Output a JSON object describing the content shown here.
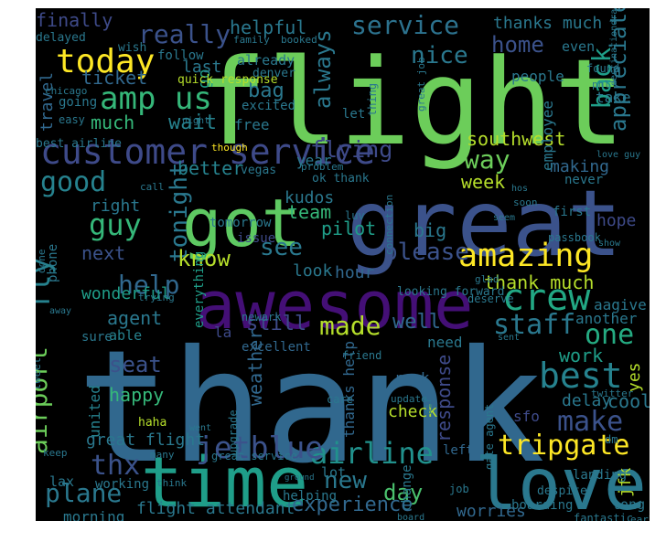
{
  "words": [
    {
      "t": "thank",
      "c": "#31688e"
    },
    {
      "t": "flight",
      "c": "#6ccd5a"
    },
    {
      "t": "great",
      "c": "#3b528b"
    },
    {
      "t": "awesome",
      "c": "#440f76"
    },
    {
      "t": "love",
      "c": "#2a788e"
    },
    {
      "t": "time",
      "c": "#1f9e89"
    },
    {
      "t": "got",
      "c": "#5ec962"
    },
    {
      "t": "customer service",
      "c": "#3e4a89"
    },
    {
      "t": "today",
      "c": "#fde725"
    },
    {
      "t": "amp us",
      "c": "#35b779"
    },
    {
      "t": "amazing",
      "c": "#fde725"
    },
    {
      "t": "best",
      "c": "#26828e"
    },
    {
      "t": "crew",
      "c": "#22a884"
    },
    {
      "t": "airline",
      "c": "#21918c"
    },
    {
      "t": "jetblue",
      "c": "#3b528b"
    },
    {
      "t": "tripgate",
      "c": "#fde725"
    },
    {
      "t": "service",
      "c": "#2c728e"
    },
    {
      "t": "really",
      "c": "#3b528b"
    },
    {
      "t": "good",
      "c": "#26828e"
    },
    {
      "t": "guy",
      "c": "#35b779"
    },
    {
      "t": "help",
      "c": "#31688e"
    },
    {
      "t": "flying",
      "c": "#3e4a89"
    },
    {
      "t": "back",
      "c": "#1f9e89"
    },
    {
      "t": "appreciate",
      "c": "#2a788e"
    },
    {
      "t": "way",
      "c": "#6ccd5a"
    },
    {
      "t": "please",
      "c": "#3b528b"
    },
    {
      "t": "made",
      "c": "#b5de2b"
    },
    {
      "t": "make",
      "c": "#3b528b"
    },
    {
      "t": "staff",
      "c": "#2a788e"
    },
    {
      "t": "one",
      "c": "#25ab82"
    },
    {
      "t": "thx",
      "c": "#3b528b"
    },
    {
      "t": "plane",
      "c": "#2a788e"
    },
    {
      "t": "new",
      "c": "#2a788e"
    },
    {
      "t": "day",
      "c": "#4ac16d"
    },
    {
      "t": "home",
      "c": "#3b528b"
    },
    {
      "t": "nice",
      "c": "#2a788e"
    },
    {
      "t": "fly",
      "c": "#26828e"
    },
    {
      "t": "airport",
      "c": "#6ccd5a"
    },
    {
      "t": "tonight",
      "c": "#2a788e"
    },
    {
      "t": "know",
      "c": "#b5de2b"
    },
    {
      "t": "see",
      "c": "#2a788e"
    },
    {
      "t": "experience",
      "c": "#31688e"
    },
    {
      "t": "always",
      "c": "#2a788e"
    },
    {
      "t": "finally",
      "c": "#3e4a89"
    },
    {
      "t": "helpful",
      "c": "#2a788e"
    },
    {
      "t": "thanks much",
      "c": "#2a788e"
    },
    {
      "t": "bag",
      "c": "#2a788e"
    },
    {
      "t": "ticket",
      "c": "#31688e"
    },
    {
      "t": "wait",
      "c": "#26828e"
    },
    {
      "t": "better",
      "c": "#26828e"
    },
    {
      "t": "southwest",
      "c": "#b5de2b"
    },
    {
      "t": "week",
      "c": "#b5de2b"
    },
    {
      "t": "making",
      "c": "#31688e"
    },
    {
      "t": "thank much",
      "c": "#b5de2b"
    },
    {
      "t": "still",
      "c": "#3e4a89"
    },
    {
      "t": "well",
      "c": "#31688e"
    },
    {
      "t": "agent",
      "c": "#2a788e"
    },
    {
      "t": "seat",
      "c": "#3b528b"
    },
    {
      "t": "happy",
      "c": "#35b779"
    },
    {
      "t": "work",
      "c": "#1f9e89"
    },
    {
      "t": "cool",
      "c": "#2a788e"
    },
    {
      "t": "delay",
      "c": "#2a788e"
    },
    {
      "t": "response",
      "c": "#3e4a89"
    },
    {
      "t": "great flight",
      "c": "#2a788e"
    },
    {
      "t": "flight attendant",
      "c": "#2a788e"
    },
    {
      "t": "morning",
      "c": "#2a788e"
    },
    {
      "t": "worries",
      "c": "#31688e"
    },
    {
      "t": "next",
      "c": "#3b528b"
    },
    {
      "t": "right",
      "c": "#2a788e"
    },
    {
      "t": "wonderful",
      "c": "#1f9e89"
    },
    {
      "t": "team",
      "c": "#35b779"
    },
    {
      "t": "kudos",
      "c": "#2a788e"
    },
    {
      "t": "pilot",
      "c": "#1f9e89"
    },
    {
      "t": "year",
      "c": "#2a788e"
    },
    {
      "t": "hope",
      "c": "#3e4a89"
    },
    {
      "t": "look",
      "c": "#2a788e"
    },
    {
      "t": "hour",
      "c": "#31688e"
    },
    {
      "t": "big",
      "c": "#2a788e"
    },
    {
      "t": "go",
      "c": "#1f9e89"
    },
    {
      "t": "travel",
      "c": "#31688e"
    },
    {
      "t": "much",
      "c": "#35b779"
    },
    {
      "t": "last",
      "c": "#2a788e"
    },
    {
      "t": "free",
      "c": "#2a788e"
    },
    {
      "t": "phone",
      "c": "#2a788e"
    },
    {
      "t": "everything",
      "c": "#1f9e89"
    },
    {
      "t": "weather",
      "c": "#31688e"
    },
    {
      "t": "united",
      "c": "#26828e"
    },
    {
      "t": "thanks help",
      "c": "#31688e"
    },
    {
      "t": "rock",
      "c": "#31688e"
    },
    {
      "t": "check",
      "c": "#b5de2b"
    },
    {
      "t": "sfo",
      "c": "#3e4a89"
    },
    {
      "t": "jfk",
      "c": "#b5de2b"
    },
    {
      "t": "yes",
      "c": "#b5de2b"
    },
    {
      "t": "need",
      "c": "#2a788e"
    },
    {
      "t": "another",
      "c": "#2a788e"
    },
    {
      "t": "aagive",
      "c": "#2a788e"
    },
    {
      "t": "people",
      "c": "#2a788e"
    },
    {
      "t": "even",
      "c": "#2a788e"
    },
    {
      "t": "employee",
      "c": "#2a788e"
    },
    {
      "t": "take",
      "c": "#2a788e"
    },
    {
      "t": "never",
      "c": "#2a788e"
    },
    {
      "t": "first",
      "c": "#2a788e"
    },
    {
      "t": "tomorrow",
      "c": "#2a788e"
    },
    {
      "t": "issue",
      "c": "#3e4a89"
    },
    {
      "t": "la",
      "c": "#3e4a89"
    },
    {
      "t": "sure",
      "c": "#2a788e"
    },
    {
      "t": "able",
      "c": "#26828e"
    },
    {
      "t": "excellent",
      "c": "#31688e"
    },
    {
      "t": "lax",
      "c": "#2a788e"
    },
    {
      "t": "working",
      "c": "#2a788e"
    },
    {
      "t": "long",
      "c": "#2a788e"
    },
    {
      "t": "change",
      "c": "#2a788e"
    },
    {
      "t": "left",
      "c": "#31688e"
    },
    {
      "t": "lot",
      "c": "#2a788e"
    },
    {
      "t": "helping",
      "c": "#2a788e"
    },
    {
      "t": "boarding",
      "c": "#2a788e"
    },
    {
      "t": "landing",
      "c": "#2a788e"
    },
    {
      "t": "going",
      "c": "#2a788e"
    },
    {
      "t": "delayed",
      "c": "#2a788e"
    },
    {
      "t": "wish",
      "c": "#2a788e"
    },
    {
      "t": "family",
      "c": "#2a788e"
    },
    {
      "t": "booked",
      "c": "#2a788e"
    },
    {
      "t": "follow",
      "c": "#2a788e"
    },
    {
      "t": "already",
      "c": "#2a788e"
    },
    {
      "t": "denver",
      "c": "#2a788e"
    },
    {
      "t": "quick response",
      "c": "#b5de2b"
    },
    {
      "t": "chicago",
      "c": "#2a788e"
    },
    {
      "t": "excited",
      "c": "#2a788e"
    },
    {
      "t": "let",
      "c": "#2a788e"
    },
    {
      "t": "easy",
      "c": "#2a788e"
    },
    {
      "t": "night",
      "c": "#2a788e"
    },
    {
      "t": "best airline",
      "c": "#2a788e"
    },
    {
      "t": "vegas",
      "c": "#2a788e"
    },
    {
      "t": "problem",
      "c": "#2a788e"
    },
    {
      "t": "though",
      "c": "#fde725"
    },
    {
      "t": "ok thank",
      "c": "#2a788e"
    },
    {
      "t": "call",
      "c": "#2a788e"
    },
    {
      "t": "soon",
      "c": "#2a788e"
    },
    {
      "t": "luv",
      "c": "#2a788e"
    },
    {
      "t": "connection",
      "c": "#2a788e"
    },
    {
      "t": "passbook",
      "c": "#2a788e"
    },
    {
      "t": "looking forward",
      "c": "#2a788e"
    },
    {
      "t": "done",
      "c": "#2a788e"
    },
    {
      "t": "away",
      "c": "#2a788e"
    },
    {
      "t": "trying",
      "c": "#2a788e"
    },
    {
      "t": "newark",
      "c": "#2a788e"
    },
    {
      "t": "deserve",
      "c": "#2a788e"
    },
    {
      "t": "glad",
      "c": "#2a788e"
    },
    {
      "t": "friend",
      "c": "#2a788e"
    },
    {
      "t": "sent",
      "c": "#2a788e"
    },
    {
      "t": "tweet",
      "c": "#2a788e"
    },
    {
      "t": "haha",
      "c": "#b5de2b"
    },
    {
      "t": "upgrade",
      "c": "#2a788e"
    },
    {
      "t": "care",
      "c": "#2a788e"
    },
    {
      "t": "update",
      "c": "#2a788e"
    },
    {
      "t": "twitter",
      "c": "#2a788e"
    },
    {
      "t": "great service",
      "c": "#2a788e"
    },
    {
      "t": "went",
      "c": "#2a788e"
    },
    {
      "t": "keep",
      "c": "#2a788e"
    },
    {
      "t": "many",
      "c": "#2a788e"
    },
    {
      "t": "think",
      "c": "#2a788e"
    },
    {
      "t": "ground",
      "c": "#2a788e"
    },
    {
      "t": "job",
      "c": "#2a788e"
    },
    {
      "t": "gate agent",
      "c": "#2a788e"
    },
    {
      "t": "despite",
      "c": "#2a788e"
    },
    {
      "t": "fantastic",
      "c": "#2a788e"
    },
    {
      "t": "early",
      "c": "#2a788e"
    },
    {
      "t": "board",
      "c": "#2a788e"
    },
    {
      "t": "destinationdragons",
      "c": "#2a788e"
    },
    {
      "t": "great job",
      "c": "#2a788e"
    },
    {
      "t": "found",
      "c": "#2a788e"
    },
    {
      "t": "phl",
      "c": "#2a788e"
    },
    {
      "t": "show",
      "c": "#2a788e"
    },
    {
      "t": "dm",
      "c": "#2a788e"
    },
    {
      "t": "air",
      "c": "#2a788e"
    },
    {
      "t": "thing",
      "c": "#2a788e"
    },
    {
      "t": "love guy",
      "c": "#2a788e"
    },
    {
      "t": "seem",
      "c": "#2a788e"
    },
    {
      "t": "hos",
      "c": "#2a788e"
    }
  ]
}
